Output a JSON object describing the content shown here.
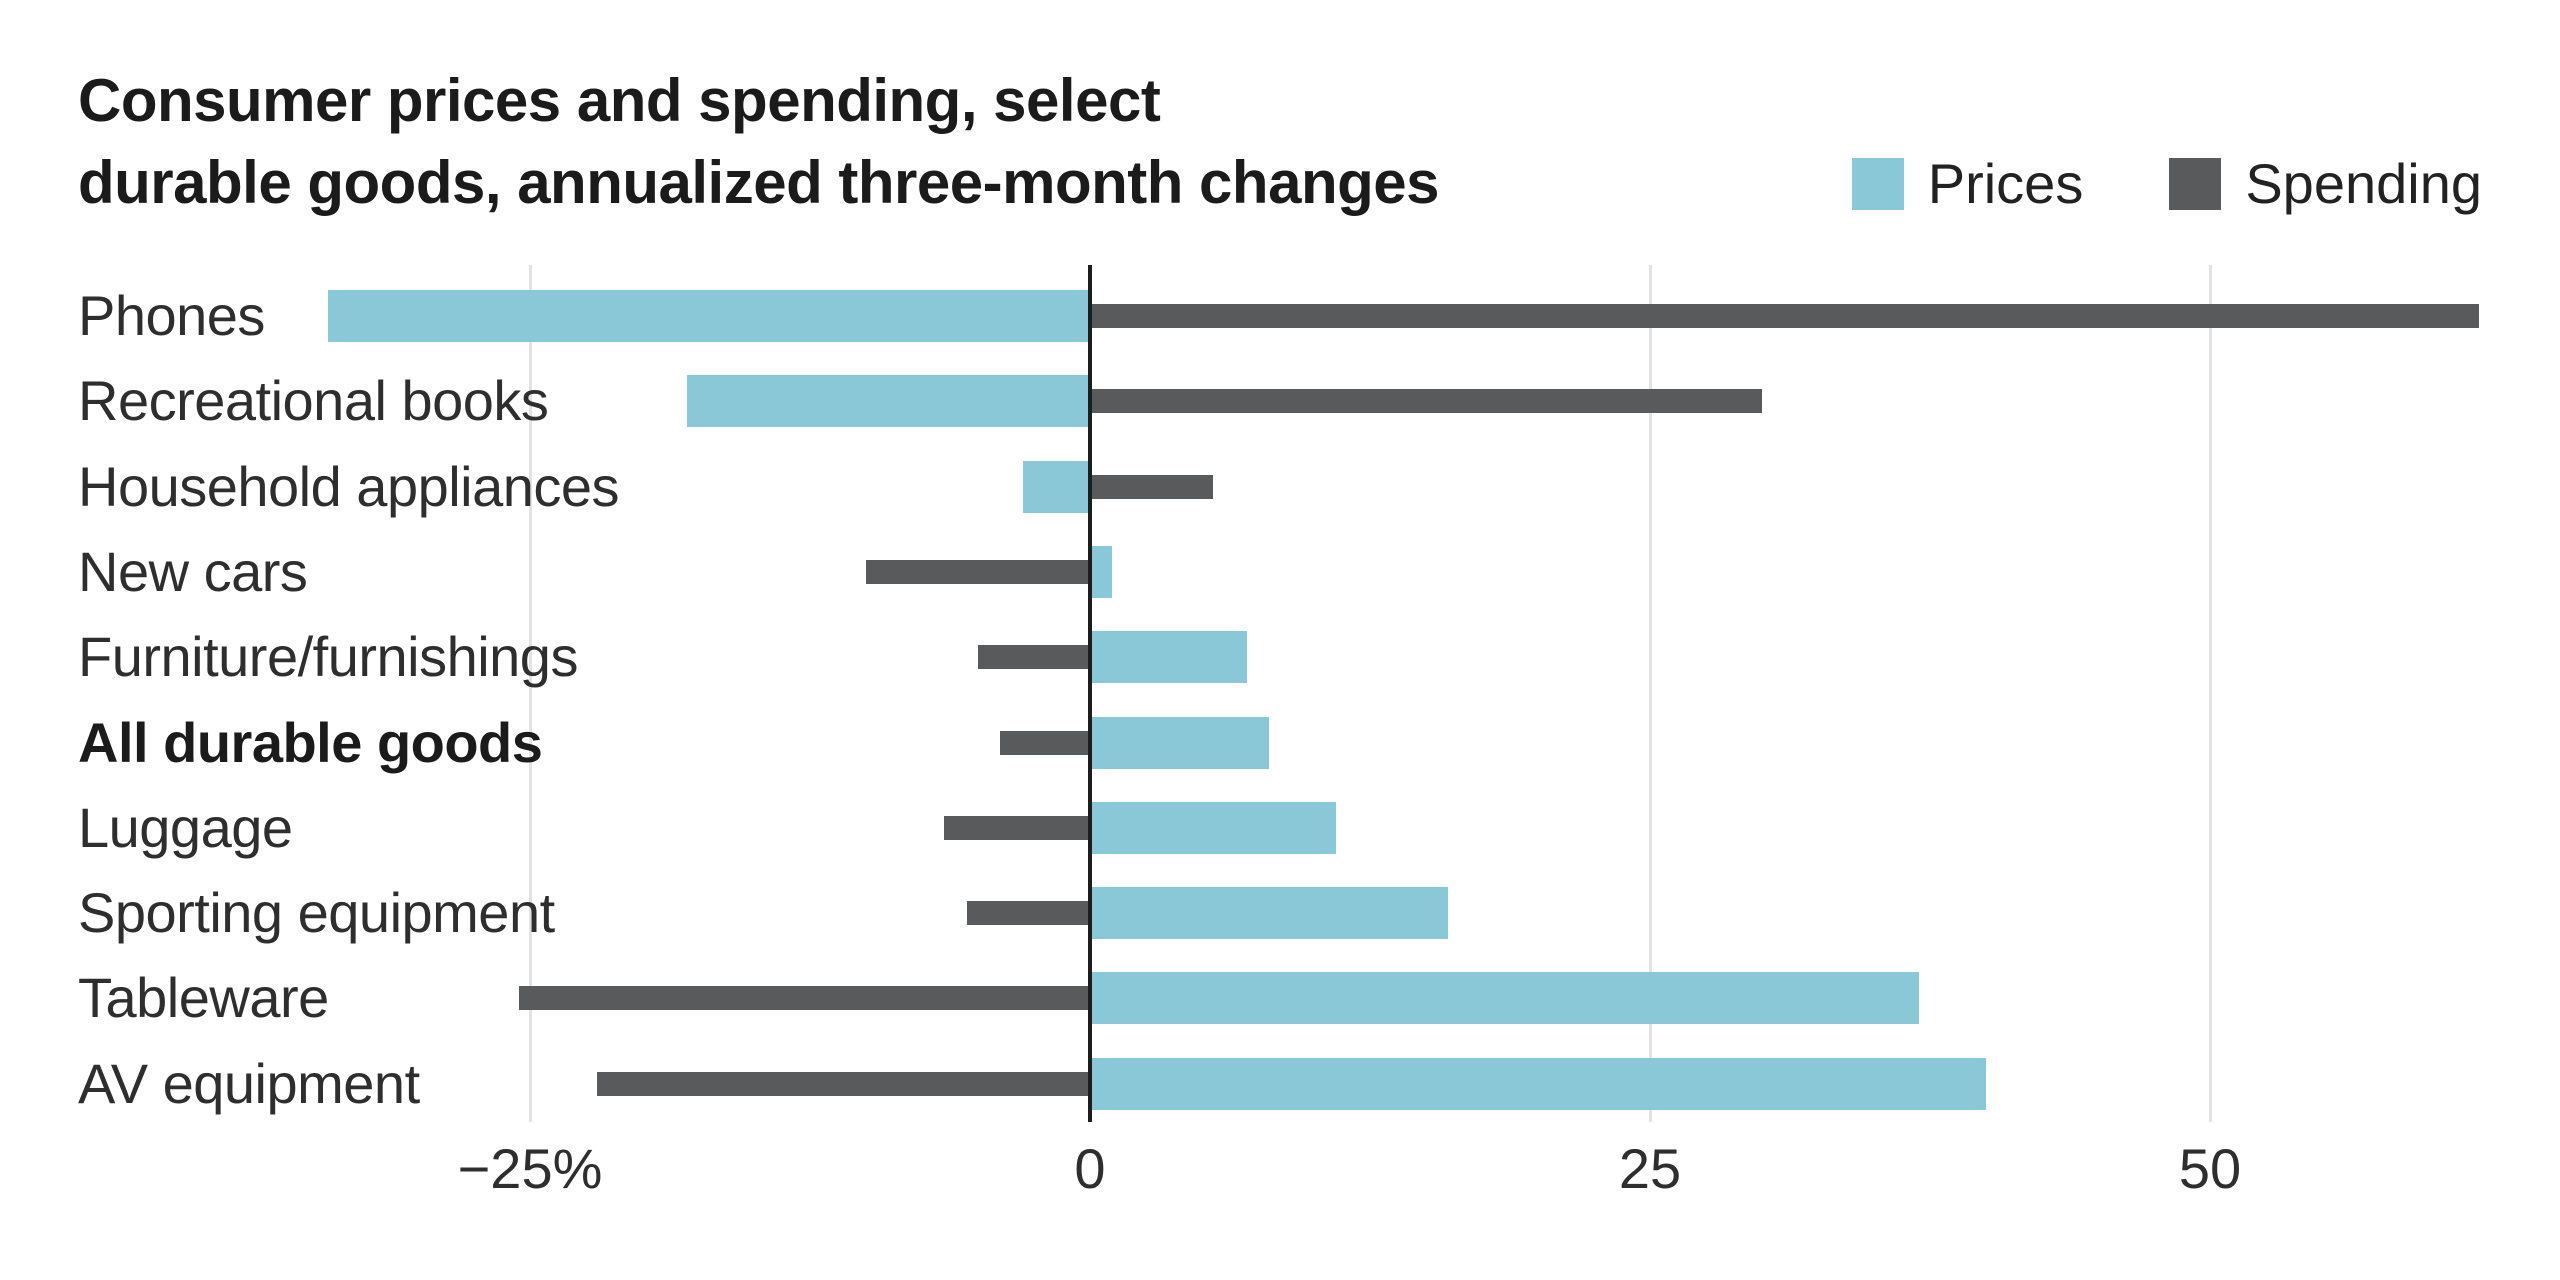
{
  "title": {
    "line1": "Consumer prices and spending, select",
    "line2": "durable goods, annualized three-month changes"
  },
  "legend": {
    "items": [
      {
        "label": "Prices",
        "color": "#8bc8d7"
      },
      {
        "label": "Spending",
        "color": "#595a5c"
      }
    ]
  },
  "chart_data": {
    "type": "bar",
    "orientation": "horizontal",
    "title": "Consumer prices and spending, select durable goods, annualized three-month changes",
    "xlabel": "",
    "ylabel": "",
    "categories": [
      "Phones",
      "Recreational books",
      "Household appliances",
      "New cars",
      "Furniture/furnishings",
      "All durable goods",
      "Luggage",
      "Sporting equipment",
      "Tableware",
      "AV equipment"
    ],
    "emphasized_category": "All durable goods",
    "series": [
      {
        "name": "Prices",
        "color": "#8bc8d7",
        "values": [
          -34,
          -18,
          -3,
          1,
          7,
          8,
          11,
          16,
          37,
          40
        ]
      },
      {
        "name": "Spending",
        "color": "#595a5c",
        "values": [
          62,
          30,
          5.5,
          -10,
          -5,
          -4,
          -6.5,
          -5.5,
          -25.5,
          -22
        ]
      }
    ],
    "x_ticks": [
      {
        "value": -25,
        "label": "−25%"
      },
      {
        "value": 0,
        "label": "0"
      },
      {
        "value": 25,
        "label": "25"
      },
      {
        "value": 50,
        "label": "50"
      }
    ],
    "xlim": [
      -48,
      66
    ],
    "grid": "vertical-light-gridlines-at-ticks",
    "zero_line": true,
    "legend_position": "top-right"
  },
  "colors": {
    "background": "#ffffff",
    "title_text": "#1b1b1b",
    "label_text": "#2e2e2e",
    "gridline": "#e3e3e3",
    "zero_line": "#1d1d1d",
    "prices_bar": "#8bc8d7",
    "spending_bar": "#595a5c"
  }
}
